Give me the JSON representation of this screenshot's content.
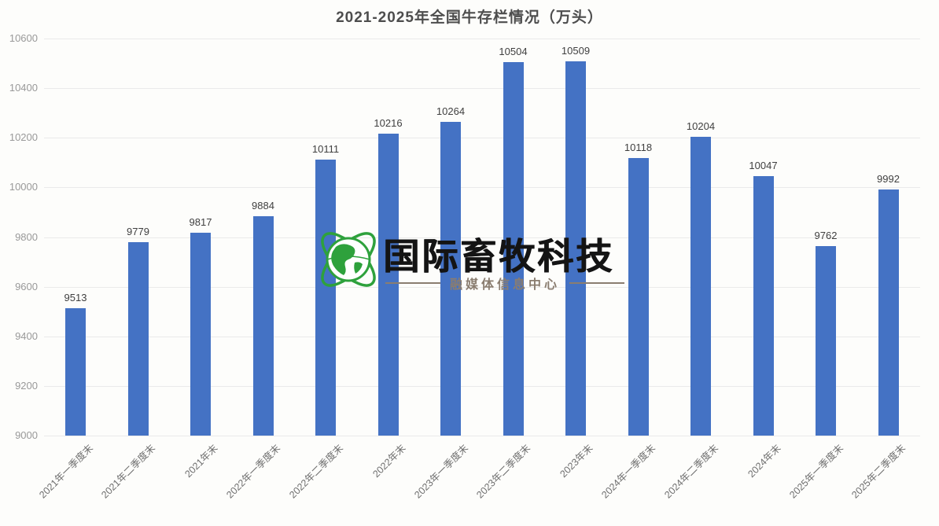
{
  "chart_data": {
    "type": "bar",
    "title": "2021-2025年全国牛存栏情况（万头）",
    "categories": [
      "2021年一季度末",
      "2021年二季度末",
      "2021年末",
      "2022年一季度末",
      "2022年二季度末",
      "2022年末",
      "2023年一季度末",
      "2023年二季度末",
      "2023年末",
      "2024年一季度末",
      "2024年二季度末",
      "2024年末",
      "2025年一季度末",
      "2025年二季度末"
    ],
    "values": [
      9513,
      9779,
      9817,
      9884,
      10111,
      10216,
      10264,
      10504,
      10509,
      10118,
      10204,
      10047,
      9762,
      9992
    ],
    "xlabel": "",
    "ylabel": "",
    "ylim": [
      9000,
      10600
    ],
    "yticks": [
      9000,
      9200,
      9400,
      9600,
      9800,
      10000,
      10200,
      10400,
      10600
    ],
    "grid": true,
    "legend": "none",
    "value_labels": true,
    "bar_color": "#4472c4",
    "gridline_color": "#eaeaea"
  },
  "watermark": {
    "logo_icon": "globe-icon",
    "brand": "国际畜牧科技",
    "subtitle": "融媒体信息中心",
    "brand_color": "#141414",
    "subtitle_color": "#8a7d70",
    "globe_color": "#2ea13c"
  }
}
